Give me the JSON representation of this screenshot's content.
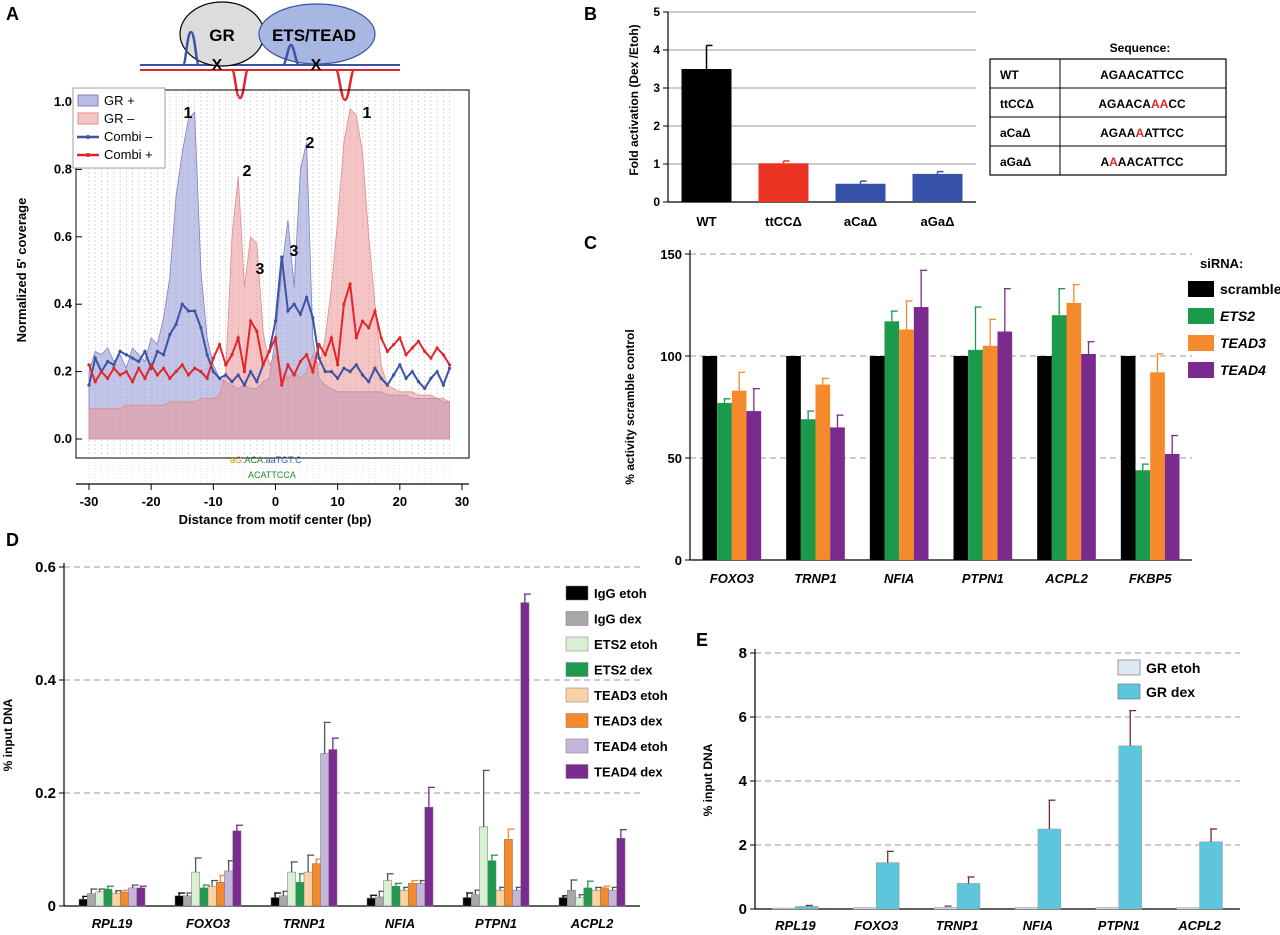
{
  "panelA": {
    "letter": "A",
    "diagram": {
      "left_box": "GR",
      "right_box": "ETS/TEAD"
    },
    "ylabel": "Normalized 5' coverage",
    "xlabel": "Distance from motif center (bp)",
    "legend": [
      "GR +",
      "GR –",
      "Combi –",
      "Combi +"
    ],
    "peak_labels": [
      "1",
      "2",
      "3",
      "3",
      "2",
      "1"
    ],
    "motif_top": [
      "aG",
      ".",
      "ACA",
      ".",
      "aaTGT",
      ".",
      "C"
    ],
    "motif_bottom": [
      "ACATTCCA"
    ],
    "colors": {
      "gr_plus": "#8f95d3",
      "gr_minus": "#f0a8a8",
      "combi_minus": "#3a53a4",
      "combi_plus": "#e0262a"
    }
  },
  "panelB": {
    "letter": "B",
    "table_title": "Sequence:",
    "table_rows": [
      {
        "name": "WT",
        "seq": [
          [
            "AGAACATTCC",
            false
          ]
        ]
      },
      {
        "name": "ttCCΔ",
        "seq": [
          [
            "AGAACA",
            false
          ],
          [
            "AA",
            true
          ],
          [
            "CC",
            false
          ]
        ]
      },
      {
        "name": "aCaΔ",
        "seq": [
          [
            "AGAA",
            false
          ],
          [
            "A",
            true
          ],
          [
            "ATTCC",
            false
          ]
        ]
      },
      {
        "name": "aGaΔ",
        "seq": [
          [
            "A",
            false
          ],
          [
            "A",
            true
          ],
          [
            "AACATTCC",
            false
          ]
        ]
      }
    ]
  },
  "panelC": {
    "letter": "C",
    "legend_title": "siRNA:"
  },
  "panelD": {
    "letter": "D"
  },
  "panelE": {
    "letter": "E"
  },
  "chart_data": [
    {
      "panel": "A",
      "type": "area",
      "xlabel": "Distance from motif center (bp)",
      "ylabel": "Normalized 5' coverage",
      "xlim": [
        -30,
        30
      ],
      "ylim": [
        0,
        1.0
      ],
      "xticks": [
        -30,
        -20,
        -10,
        0,
        10,
        20,
        30
      ],
      "yticks": [
        0.0,
        0.2,
        0.4,
        0.6,
        0.8,
        1.0
      ],
      "series": [
        {
          "name": "GR +",
          "type": "area",
          "x": [
            -30,
            -29,
            -28,
            -27,
            -26,
            -25,
            -24,
            -23,
            -22,
            -21,
            -20,
            -19,
            -18,
            -17,
            -16,
            -15,
            -14,
            -13,
            -12,
            -11,
            -10,
            -9,
            -8,
            -7,
            -6,
            -5,
            -4,
            -3,
            -2,
            -1,
            0,
            1,
            2,
            3,
            4,
            5,
            6,
            7,
            8,
            9,
            10,
            11,
            12,
            13,
            14,
            15,
            16,
            17,
            18,
            19,
            20,
            21,
            22,
            23,
            24,
            25,
            26,
            27,
            28
          ],
          "values": [
            0.2,
            0.26,
            0.25,
            0.27,
            0.23,
            0.25,
            0.21,
            0.27,
            0.25,
            0.23,
            0.3,
            0.28,
            0.36,
            0.48,
            0.72,
            0.85,
            0.95,
            0.97,
            0.5,
            0.3,
            0.22,
            0.18,
            0.17,
            0.16,
            0.15,
            0.16,
            0.15,
            0.15,
            0.17,
            0.18,
            0.3,
            0.5,
            0.65,
            0.45,
            0.8,
            0.88,
            0.3,
            0.18,
            0.16,
            0.15,
            0.14,
            0.14,
            0.14,
            0.14,
            0.14,
            0.14,
            0.14,
            0.14,
            0.13,
            0.13,
            0.13,
            0.13,
            0.12,
            0.12,
            0.12,
            0.12,
            0.12,
            0.11,
            0.11
          ]
        },
        {
          "name": "GR –",
          "type": "area",
          "x": [
            -30,
            -29,
            -28,
            -27,
            -26,
            -25,
            -24,
            -23,
            -22,
            -21,
            -20,
            -19,
            -18,
            -17,
            -16,
            -15,
            -14,
            -13,
            -12,
            -11,
            -10,
            -9,
            -8,
            -7,
            -6,
            -5,
            -4,
            -3,
            -2,
            -1,
            0,
            1,
            2,
            3,
            4,
            5,
            6,
            7,
            8,
            9,
            10,
            11,
            12,
            13,
            14,
            15,
            16,
            17,
            18,
            19,
            20,
            21,
            22,
            23,
            24,
            25,
            26,
            27,
            28
          ],
          "values": [
            0.09,
            0.09,
            0.09,
            0.09,
            0.09,
            0.09,
            0.1,
            0.1,
            0.1,
            0.1,
            0.1,
            0.1,
            0.1,
            0.11,
            0.11,
            0.11,
            0.11,
            0.11,
            0.12,
            0.12,
            0.12,
            0.13,
            0.2,
            0.6,
            0.78,
            0.45,
            0.6,
            0.58,
            0.32,
            0.22,
            0.25,
            0.2,
            0.18,
            0.2,
            0.18,
            0.2,
            0.25,
            0.22,
            0.3,
            0.45,
            0.65,
            0.88,
            0.98,
            0.96,
            0.85,
            0.6,
            0.4,
            0.22,
            0.16,
            0.15,
            0.14,
            0.14,
            0.14,
            0.13,
            0.13,
            0.13,
            0.12,
            0.12,
            0.11
          ]
        },
        {
          "name": "Combi –",
          "type": "line",
          "x": [
            -30,
            -29,
            -28,
            -27,
            -26,
            -25,
            -24,
            -23,
            -22,
            -21,
            -20,
            -19,
            -18,
            -17,
            -16,
            -15,
            -14,
            -13,
            -12,
            -11,
            -10,
            -9,
            -8,
            -7,
            -6,
            -5,
            -4,
            -3,
            -2,
            -1,
            0,
            1,
            2,
            3,
            4,
            5,
            6,
            7,
            8,
            9,
            10,
            11,
            12,
            13,
            14,
            15,
            16,
            17,
            18,
            19,
            20,
            21,
            22,
            23,
            24,
            25,
            26,
            27,
            28
          ],
          "values": [
            0.16,
            0.24,
            0.2,
            0.23,
            0.22,
            0.26,
            0.25,
            0.24,
            0.23,
            0.26,
            0.21,
            0.26,
            0.25,
            0.31,
            0.34,
            0.4,
            0.38,
            0.38,
            0.33,
            0.25,
            0.2,
            0.18,
            0.19,
            0.17,
            0.19,
            0.16,
            0.2,
            0.17,
            0.22,
            0.26,
            0.35,
            0.54,
            0.38,
            0.4,
            0.37,
            0.42,
            0.36,
            0.24,
            0.2,
            0.2,
            0.18,
            0.21,
            0.2,
            0.22,
            0.19,
            0.17,
            0.21,
            0.18,
            0.16,
            0.19,
            0.22,
            0.18,
            0.2,
            0.17,
            0.15,
            0.18,
            0.2,
            0.16,
            0.21
          ]
        },
        {
          "name": "Combi +",
          "type": "line",
          "x": [
            -30,
            -29,
            -28,
            -27,
            -26,
            -25,
            -24,
            -23,
            -22,
            -21,
            -20,
            -19,
            -18,
            -17,
            -16,
            -15,
            -14,
            -13,
            -12,
            -11,
            -10,
            -9,
            -8,
            -7,
            -6,
            -5,
            -4,
            -3,
            -2,
            -1,
            0,
            1,
            2,
            3,
            4,
            5,
            6,
            7,
            8,
            9,
            10,
            11,
            12,
            13,
            14,
            15,
            16,
            17,
            18,
            19,
            20,
            21,
            22,
            23,
            24,
            25,
            26,
            27,
            28
          ],
          "values": [
            0.22,
            0.17,
            0.2,
            0.18,
            0.21,
            0.19,
            0.2,
            0.17,
            0.21,
            0.18,
            0.22,
            0.19,
            0.21,
            0.18,
            0.2,
            0.22,
            0.19,
            0.21,
            0.2,
            0.18,
            0.24,
            0.28,
            0.22,
            0.25,
            0.3,
            0.2,
            0.35,
            0.32,
            0.22,
            0.26,
            0.3,
            0.16,
            0.22,
            0.19,
            0.23,
            0.25,
            0.2,
            0.28,
            0.25,
            0.3,
            0.22,
            0.4,
            0.46,
            0.3,
            0.35,
            0.33,
            0.38,
            0.3,
            0.26,
            0.28,
            0.3,
            0.25,
            0.27,
            0.29,
            0.26,
            0.24,
            0.27,
            0.25,
            0.22
          ]
        }
      ]
    },
    {
      "panel": "B",
      "type": "bar",
      "ylabel": "Fold activation (Dex /Etoh)",
      "categories": [
        "WT",
        "ttCCΔ",
        "aCaΔ",
        "aGaΔ"
      ],
      "values": [
        3.5,
        1.02,
        0.48,
        0.74
      ],
      "errors": [
        0.62,
        0.06,
        0.07,
        0.06
      ],
      "colors": [
        "#000000",
        "#ea3323",
        "#3651a8",
        "#3651a8"
      ],
      "ylim": [
        0,
        5
      ],
      "yticks": [
        0,
        1,
        2,
        3,
        4,
        5
      ]
    },
    {
      "panel": "C",
      "type": "bar",
      "ylabel": "% activity scramble control",
      "categories": [
        "FOXO3",
        "TRNP1",
        "NFIA",
        "PTPN1",
        "ACPL2",
        "FKBP5"
      ],
      "series": [
        {
          "name": "scramble",
          "color": "#000000",
          "values": [
            100,
            100,
            100,
            100,
            100,
            100
          ],
          "errors": [
            0,
            0,
            0,
            0,
            0,
            0
          ]
        },
        {
          "name": "ETS2",
          "color": "#1a9a4a",
          "values": [
            77,
            69,
            117,
            103,
            120,
            44
          ],
          "errors": [
            2,
            4,
            5,
            21,
            13,
            3
          ]
        },
        {
          "name": "TEAD3",
          "color": "#f58a2c",
          "values": [
            83,
            86,
            113,
            105,
            126,
            92
          ],
          "errors": [
            9,
            3,
            14,
            13,
            9,
            9
          ]
        },
        {
          "name": "TEAD4",
          "color": "#7b2a8e",
          "values": [
            73,
            65,
            124,
            112,
            101,
            52
          ],
          "errors": [
            11,
            6,
            18,
            21,
            6,
            9
          ]
        }
      ],
      "ylim": [
        0,
        150
      ],
      "yticks": [
        0,
        50,
        100,
        150
      ]
    },
    {
      "panel": "D",
      "type": "bar",
      "ylabel": "% input DNA",
      "categories": [
        "RPL19",
        "FOXO3",
        "TRNP1",
        "NFIA",
        "PTPN1",
        "ACPL2"
      ],
      "series": [
        {
          "name": "IgG etoh",
          "color": "#000000",
          "values": [
            0.012,
            0.018,
            0.015,
            0.014,
            0.015,
            0.015
          ],
          "errors": [
            0.005,
            0.005,
            0.008,
            0.005,
            0.008,
            0.003
          ]
        },
        {
          "name": "IgG dex",
          "color": "#a8a8a8",
          "values": [
            0.022,
            0.018,
            0.018,
            0.016,
            0.02,
            0.028
          ],
          "errors": [
            0.008,
            0.005,
            0.008,
            0.01,
            0.008,
            0.018
          ]
        },
        {
          "name": "ETS2 etoh",
          "color": "#d9efd3",
          "values": [
            0.025,
            0.06,
            0.06,
            0.045,
            0.14,
            0.015
          ],
          "errors": [
            0.005,
            0.025,
            0.018,
            0.012,
            0.1,
            0.005
          ]
        },
        {
          "name": "ETS2 dex",
          "color": "#1e9a4e",
          "values": [
            0.03,
            0.032,
            0.042,
            0.035,
            0.08,
            0.032
          ],
          "errors": [
            0.005,
            0.005,
            0.015,
            0.005,
            0.01,
            0.012
          ]
        },
        {
          "name": "TEAD3 etoh",
          "color": "#fbd1a6",
          "values": [
            0.022,
            0.035,
            0.06,
            0.028,
            0.028,
            0.028
          ],
          "errors": [
            0.005,
            0.01,
            0.03,
            0.005,
            0.005,
            0.005
          ]
        },
        {
          "name": "TEAD3 dex",
          "color": "#f58a2c",
          "values": [
            0.025,
            0.042,
            0.075,
            0.04,
            0.118,
            0.032
          ],
          "errors": [
            0.003,
            0.012,
            0.008,
            0.005,
            0.018,
            0.003
          ]
        },
        {
          "name": "TEAD4 etoh",
          "color": "#c3b6d8",
          "values": [
            0.032,
            0.062,
            0.27,
            0.04,
            0.028,
            0.028
          ],
          "errors": [
            0.005,
            0.018,
            0.055,
            0.005,
            0.005,
            0.005
          ]
        },
        {
          "name": "TEAD4 dex",
          "color": "#7b2a8e",
          "values": [
            0.032,
            0.133,
            0.277,
            0.175,
            0.537,
            0.12
          ],
          "errors": [
            0.003,
            0.01,
            0.02,
            0.035,
            0.015,
            0.015
          ]
        }
      ],
      "ylim": [
        0,
        0.6
      ],
      "yticks": [
        0,
        0.2,
        0.4,
        0.6
      ]
    },
    {
      "panel": "E",
      "type": "bar",
      "ylabel": "% input DNA",
      "categories": [
        "RPL19",
        "FOXO3",
        "TRNP1",
        "NFIA",
        "PTPN1",
        "ACPL2"
      ],
      "series": [
        {
          "name": "GR etoh",
          "color": "#dfe9f3",
          "values": [
            0.03,
            0.05,
            0.05,
            0.05,
            0.05,
            0.04
          ],
          "errors": [
            0.0,
            0.0,
            0.04,
            0.0,
            0.0,
            0.0
          ]
        },
        {
          "name": "GR dex",
          "color": "#5ec6dc",
          "values": [
            0.08,
            1.45,
            0.8,
            2.5,
            5.1,
            2.1
          ],
          "errors": [
            0.03,
            0.35,
            0.2,
            0.9,
            1.1,
            0.4
          ]
        }
      ],
      "ylim": [
        0,
        8
      ],
      "yticks": [
        0,
        2,
        4,
        6,
        8
      ]
    }
  ]
}
